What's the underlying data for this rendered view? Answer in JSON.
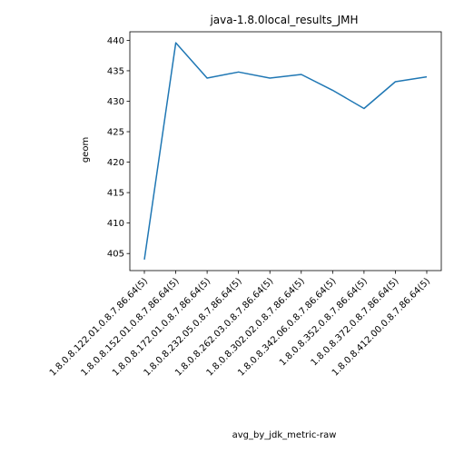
{
  "chart_data": {
    "type": "line",
    "title": "java-1.8.0local_results_JMH",
    "xlabel": "avg_by_jdk_metric-raw",
    "ylabel": "geom",
    "categories": [
      "1.8.0.8.122.01.0.8.7.86.64(5)",
      "1.8.0.8.152.01.0.8.7.86.64(5)",
      "1.8.0.8.172.01.0.8.7.86.64(5)",
      "1.8.0.8.232.05.0.8.7.86.64(5)",
      "1.8.0.8.262.03.0.8.7.86.64(5)",
      "1.8.0.8.302.02.0.8.7.86.64(5)",
      "1.8.0.8.342.06.0.8.7.86.64(5)",
      "1.8.0.8.352.0.8.7.86.64(5)",
      "1.8.0.8.372.0.8.7.86.64(5)",
      "1.8.0.8.412.00.0.8.7.86.64(5)"
    ],
    "series": [
      {
        "values": [
          404.0,
          439.6,
          433.8,
          434.8,
          433.8,
          434.4,
          431.8,
          428.8,
          433.2,
          434.0
        ]
      }
    ],
    "yticks": [
      405,
      410,
      415,
      420,
      425,
      430,
      435,
      440
    ],
    "ylim": [
      402.2,
      441.4
    ],
    "grid": false,
    "legend": "none",
    "colors": {
      "line": "#1f77b4",
      "axis": "#000000",
      "background": "#ffffff"
    }
  }
}
